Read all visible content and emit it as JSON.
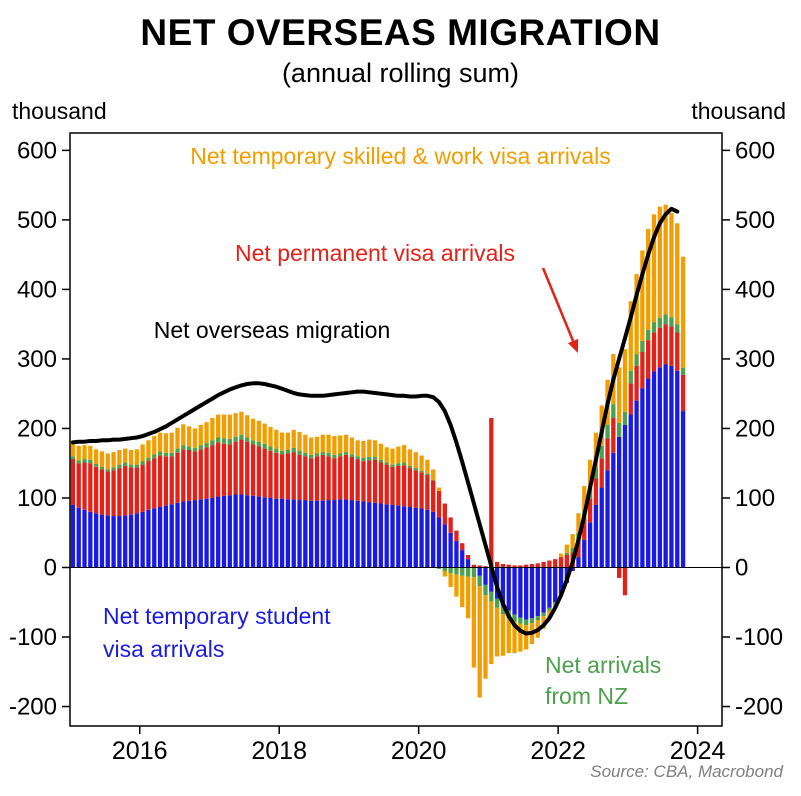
{
  "header": {
    "title": "NET OVERSEAS MIGRATION",
    "subtitle": "(annual rolling sum)",
    "unit_left": "thousand",
    "unit_right": "thousand"
  },
  "source": "Source: CBA, Macrobond",
  "annotations": {
    "skilled": "Net temporary skilled & work visa arrivals",
    "permanent": "Net permanent visa arrivals",
    "nom": "Net overseas migration",
    "student_line1": "Net temporary student",
    "student_line2": "visa arrivals",
    "nz_line1": "Net arrivals",
    "nz_line2": "from NZ"
  },
  "colors": {
    "orange": "#f29e00",
    "red": "#e32119",
    "blue": "#1a1ae6",
    "green": "#4da04d",
    "line": "#000000"
  },
  "chart_data": {
    "type": "bar",
    "subtype": "stacked monthly bars with overlaid line",
    "start": "2015-01",
    "frequency": "monthly",
    "x_ticks": [
      2016,
      2018,
      2020,
      2022,
      2024
    ],
    "y_ticks": [
      600,
      500,
      400,
      300,
      200,
      100,
      0,
      -100,
      -200
    ],
    "ylim": [
      -228,
      625
    ],
    "xlim": [
      2015,
      2024.35
    ],
    "ylabel": "thousand",
    "grid": false,
    "legend_position": "in-plot text annotations",
    "series": [
      {
        "name": "Net temporary student visa arrivals",
        "color": "#1a1ae6",
        "values": [
          90,
          86,
          83,
          80,
          78,
          76,
          75,
          74,
          74,
          75,
          76,
          78,
          80,
          83,
          85,
          87,
          89,
          91,
          93,
          95,
          96,
          97,
          98,
          99,
          100,
          102,
          103,
          104,
          105,
          105,
          104,
          103,
          102,
          101,
          100,
          99,
          99,
          98,
          98,
          97,
          97,
          96,
          96,
          96,
          97,
          97,
          98,
          98,
          97,
          96,
          95,
          94,
          93,
          92,
          91,
          90,
          89,
          88,
          87,
          86,
          85,
          83,
          80,
          72,
          62,
          50,
          38,
          25,
          12,
          0,
          -12,
          -25,
          -35,
          -45,
          -55,
          -62,
          -68,
          -72,
          -75,
          -73,
          -70,
          -65,
          -58,
          -50,
          -38,
          -22,
          -5,
          15,
          40,
          65,
          90,
          115,
          140,
          165,
          188,
          205,
          220,
          240,
          258,
          272,
          282,
          288,
          292,
          290,
          283,
          225
        ]
      },
      {
        "name": "Net permanent visa arrivals",
        "color": "#e32119",
        "values": [
          66,
          64,
          68,
          70,
          67,
          65,
          63,
          66,
          69,
          71,
          68,
          66,
          68,
          70,
          72,
          74,
          71,
          69,
          72,
          75,
          73,
          70,
          72,
          74,
          76,
          78,
          75,
          73,
          76,
          79,
          77,
          74,
          72,
          70,
          68,
          66,
          64,
          66,
          68,
          65,
          63,
          61,
          64,
          66,
          63,
          60,
          62,
          64,
          62,
          60,
          58,
          60,
          62,
          59,
          57,
          55,
          57,
          59,
          56,
          54,
          52,
          50,
          45,
          38,
          30,
          22,
          15,
          10,
          6,
          4,
          3,
          2,
          215,
          8,
          5,
          4,
          3,
          3,
          4,
          5,
          6,
          8,
          10,
          12,
          15,
          18,
          22,
          26,
          30,
          34,
          38,
          42,
          46,
          50,
          -15,
          -40,
          45,
          50,
          52,
          55,
          56,
          57,
          58,
          57,
          55,
          52
        ]
      },
      {
        "name": "Net arrivals from NZ",
        "color": "#4da04d",
        "values": [
          4,
          4,
          5,
          5,
          4,
          4,
          3,
          4,
          5,
          5,
          4,
          4,
          5,
          5,
          6,
          6,
          5,
          5,
          6,
          6,
          5,
          5,
          6,
          6,
          7,
          7,
          8,
          8,
          7,
          7,
          6,
          6,
          7,
          7,
          6,
          6,
          5,
          5,
          6,
          6,
          5,
          5,
          4,
          4,
          5,
          5,
          4,
          4,
          4,
          4,
          5,
          5,
          4,
          4,
          3,
          3,
          4,
          4,
          3,
          3,
          2,
          2,
          1,
          -2,
          -5,
          -8,
          -10,
          -12,
          -13,
          -14,
          -15,
          -15,
          -14,
          -13,
          -12,
          -11,
          -10,
          -9,
          -8,
          -7,
          -6,
          -5,
          -4,
          -3,
          0,
          3,
          6,
          9,
          12,
          14,
          16,
          18,
          19,
          20,
          20,
          19,
          18,
          17,
          16,
          15,
          15,
          14,
          14,
          13,
          12,
          10
        ]
      },
      {
        "name": "Net temporary skilled & work visa arrivals",
        "color": "#f29e00",
        "values": [
          22,
          21,
          20,
          20,
          21,
          22,
          23,
          22,
          21,
          20,
          21,
          22,
          24,
          25,
          26,
          27,
          28,
          29,
          30,
          30,
          29,
          28,
          29,
          30,
          32,
          33,
          34,
          35,
          34,
          33,
          32,
          31,
          30,
          29,
          28,
          27,
          26,
          25,
          26,
          27,
          26,
          25,
          24,
          25,
          26,
          27,
          26,
          25,
          24,
          23,
          24,
          25,
          24,
          23,
          22,
          23,
          24,
          25,
          24,
          23,
          22,
          20,
          15,
          5,
          -8,
          -20,
          -32,
          -45,
          -60,
          -130,
          -160,
          -120,
          -90,
          -70,
          -60,
          -50,
          -45,
          -40,
          -35,
          -30,
          -25,
          -18,
          -10,
          -5,
          5,
          12,
          20,
          28,
          35,
          42,
          50,
          58,
          65,
          72,
          80,
          90,
          100,
          115,
          130,
          145,
          155,
          160,
          158,
          150,
          145,
          160
        ]
      }
    ],
    "line": {
      "name": "Net overseas migration",
      "color": "#000000",
      "values": [
        180,
        181,
        181,
        182,
        182,
        183,
        183,
        184,
        184,
        185,
        186,
        187,
        189,
        192,
        195,
        199,
        203,
        208,
        213,
        218,
        223,
        228,
        233,
        238,
        243,
        248,
        252,
        256,
        259,
        262,
        264,
        265,
        265,
        264,
        262,
        260,
        257,
        254,
        251,
        249,
        248,
        247,
        247,
        247,
        248,
        249,
        250,
        251,
        252,
        253,
        253,
        252,
        251,
        250,
        249,
        248,
        247,
        247,
        246,
        246,
        247,
        247,
        245,
        238,
        225,
        205,
        180,
        152,
        122,
        92,
        62,
        32,
        2,
        -28,
        -52,
        -70,
        -83,
        -91,
        -95,
        -94,
        -90,
        -83,
        -73,
        -58,
        -40,
        -18,
        8,
        40,
        75,
        115,
        155,
        195,
        235,
        270,
        300,
        330,
        360,
        392,
        422,
        450,
        475,
        495,
        508,
        516,
        512
      ]
    }
  }
}
